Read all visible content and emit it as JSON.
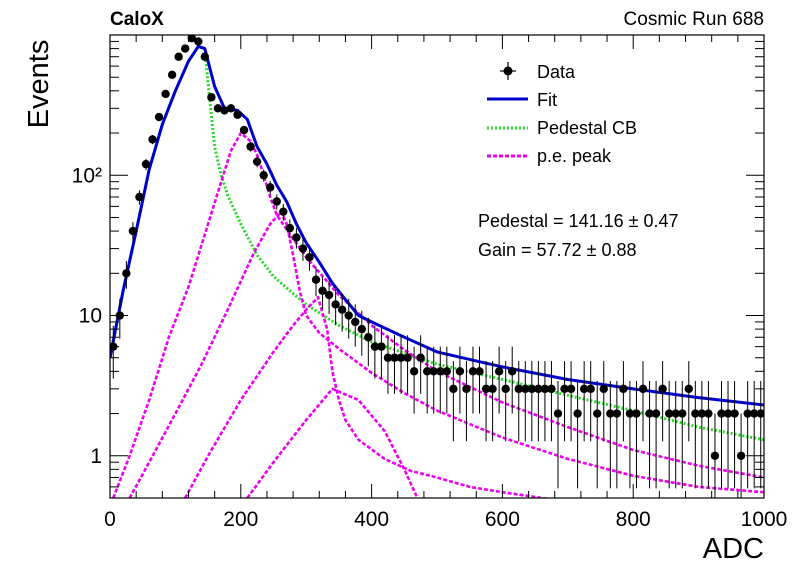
{
  "header": {
    "experiment": "CaloX",
    "run_label": "Cosmic Run 688"
  },
  "fit_results": {
    "pedestal": "Pedestal = 141.16 ± 0.47",
    "gain": "Gain = 57.72 ± 0.88"
  },
  "colors": {
    "data": "#000000",
    "fit": "#0000cc",
    "pedestal": "#22dd22",
    "pe_peak": "#ee00ee"
  },
  "chart_data": {
    "type": "scatter",
    "xlabel": "ADC",
    "ylabel": "Events",
    "xlim": [
      0,
      1000
    ],
    "ylim": [
      0.5,
      1000
    ],
    "yscale": "log",
    "x_ticks": [
      0,
      200,
      400,
      600,
      800,
      1000
    ],
    "y_ticks": [
      {
        "value": 1,
        "label": "1"
      },
      {
        "value": 10,
        "label": "10"
      },
      {
        "value": 100,
        "label": "10²"
      }
    ],
    "grid": false,
    "legend_position": "top-right",
    "legend": [
      "Data",
      "Fit",
      "Pedestal CB",
      "p.e. peak"
    ],
    "series": [
      {
        "name": "Data",
        "kind": "points_with_errors",
        "x": [
          5,
          15,
          25,
          35,
          45,
          55,
          65,
          75,
          85,
          95,
          105,
          115,
          125,
          135,
          145,
          155,
          165,
          175,
          185,
          195,
          205,
          215,
          225,
          235,
          245,
          255,
          265,
          275,
          285,
          295,
          305,
          315,
          325,
          335,
          345,
          355,
          365,
          375,
          385,
          395,
          405,
          415,
          425,
          435,
          445,
          455,
          465,
          475,
          485,
          495,
          505,
          515,
          525,
          535,
          545,
          555,
          565,
          575,
          585,
          595,
          605,
          615,
          625,
          635,
          645,
          655,
          665,
          675,
          685,
          695,
          705,
          715,
          725,
          735,
          745,
          755,
          765,
          775,
          785,
          795,
          805,
          815,
          825,
          835,
          845,
          855,
          865,
          875,
          885,
          895,
          905,
          915,
          925,
          935,
          945,
          955,
          965,
          975,
          985,
          995
        ],
        "y": [
          6,
          10,
          20,
          40,
          70,
          120,
          180,
          260,
          380,
          520,
          700,
          800,
          950,
          900,
          700,
          360,
          300,
          290,
          300,
          270,
          210,
          160,
          125,
          100,
          82,
          65,
          55,
          42,
          36,
          30,
          26,
          18,
          15,
          14,
          12,
          11,
          10,
          9,
          8,
          7,
          6,
          6,
          5,
          5,
          5,
          5,
          4,
          5,
          4,
          4,
          4,
          4,
          3,
          4,
          3,
          4,
          4,
          3,
          3,
          4,
          3,
          4,
          3,
          3,
          3,
          3,
          3,
          3,
          2,
          3,
          3,
          2,
          3,
          3,
          2,
          3,
          2,
          2,
          3,
          2,
          2,
          3,
          2,
          2,
          3,
          2,
          2,
          2,
          3,
          2,
          2,
          2,
          1,
          2,
          2,
          2,
          1,
          2,
          2,
          2
        ]
      },
      {
        "name": "Fit",
        "kind": "line",
        "x": [
          0,
          20,
          40,
          60,
          80,
          100,
          120,
          135,
          145,
          160,
          175,
          195,
          210,
          225,
          240,
          255,
          270,
          285,
          300,
          320,
          340,
          360,
          380,
          400,
          450,
          500,
          600,
          700,
          800,
          900,
          1000
        ],
        "y": [
          5,
          15,
          40,
          110,
          230,
          400,
          650,
          830,
          800,
          430,
          300,
          290,
          250,
          160,
          120,
          85,
          65,
          45,
          33,
          24,
          17,
          13,
          10,
          9,
          7,
          5.5,
          4.3,
          3.5,
          3,
          2.6,
          2.3
        ]
      },
      {
        "name": "Pedestal CB",
        "kind": "line",
        "x": [
          0,
          20,
          40,
          60,
          80,
          100,
          120,
          135,
          145,
          150,
          160,
          170,
          180,
          200,
          225,
          250,
          275,
          300,
          350,
          400,
          500,
          600,
          700,
          800,
          900,
          1000
        ],
        "y": [
          5,
          15,
          40,
          110,
          230,
          400,
          650,
          830,
          800,
          450,
          160,
          100,
          72,
          45,
          27,
          19,
          15,
          12,
          8.5,
          6.5,
          4.5,
          3.5,
          2.7,
          2.1,
          1.6,
          1.3
        ]
      },
      {
        "name": "p.e. peak",
        "kind": "line",
        "x": [
          5,
          30,
          60,
          90,
          120,
          150,
          170,
          185,
          200,
          215,
          225,
          235,
          245,
          255,
          275,
          300,
          350,
          400,
          450,
          500,
          600,
          700,
          800,
          900,
          1000
        ],
        "y": [
          0.5,
          1,
          2.5,
          7,
          16,
          45,
          90,
          150,
          200,
          175,
          140,
          100,
          70,
          52,
          38,
          26,
          14,
          8.5,
          5.7,
          4,
          2.4,
          1.6,
          1.1,
          0.85,
          0.7
        ]
      },
      {
        "name": "p.e. peak",
        "kind": "line",
        "x": [
          30,
          60,
          100,
          140,
          180,
          220,
          245,
          262,
          270,
          280,
          290,
          300,
          320,
          350,
          400,
          450,
          500,
          600,
          700,
          800,
          900,
          1000
        ],
        "y": [
          0.5,
          0.9,
          2,
          4.5,
          11,
          28,
          45,
          55,
          45,
          27,
          15,
          10,
          7.5,
          5.8,
          3.9,
          2.8,
          2.1,
          1.35,
          0.95,
          0.72,
          0.6,
          0.55
        ]
      },
      {
        "name": "p.e. peak",
        "kind": "line",
        "x": [
          115,
          150,
          200,
          250,
          280,
          300,
          318,
          332,
          340,
          350,
          360,
          380,
          420,
          460,
          500,
          550,
          600,
          700,
          800,
          900,
          1000
        ],
        "y": [
          0.5,
          1,
          2.5,
          5.5,
          8.5,
          11,
          13.5,
          8,
          4,
          2.5,
          1.8,
          1.3,
          0.95,
          0.78,
          0.7,
          0.6,
          0.55,
          0.47,
          0.43,
          0.4,
          0.38
        ]
      },
      {
        "name": "p.e. peak",
        "kind": "line",
        "x": [
          210,
          250,
          300,
          340,
          380,
          420,
          450,
          470
        ],
        "y": [
          0.5,
          0.9,
          1.8,
          3,
          2.5,
          1.5,
          0.8,
          0.5
        ]
      }
    ]
  }
}
